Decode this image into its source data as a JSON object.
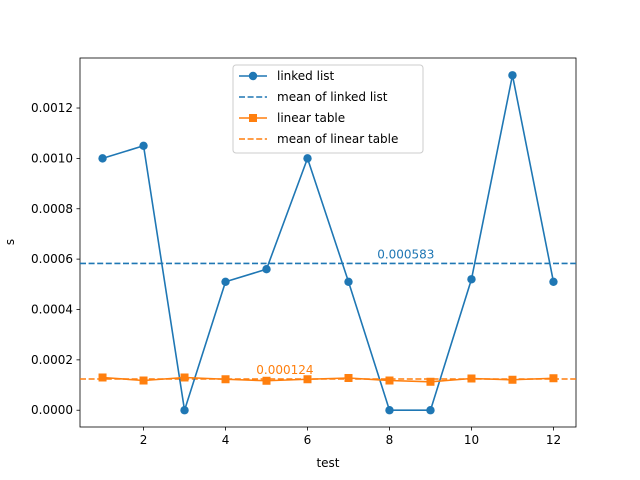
{
  "chart_data": {
    "type": "line",
    "xlabel": "test",
    "ylabel": "s",
    "xlim": [
      0.45,
      12.55
    ],
    "ylim": [
      -6.66e-05,
      0.0013986
    ],
    "x_ticks": [
      2,
      4,
      6,
      8,
      10,
      12
    ],
    "x_tick_labels": [
      "2",
      "4",
      "6",
      "8",
      "10",
      "12"
    ],
    "y_ticks": [
      0,
      0.0002,
      0.0004,
      0.0006,
      0.0008,
      0.001,
      0.0012
    ],
    "y_tick_labels": [
      "0.0000",
      "0.0002",
      "0.0004",
      "0.0006",
      "0.0008",
      "0.0010",
      "0.0012"
    ],
    "grid": false,
    "legend_position": "upper center",
    "x": [
      1,
      2,
      3,
      4,
      5,
      6,
      7,
      8,
      9,
      10,
      11,
      12
    ],
    "series": [
      {
        "name": "linked list",
        "color": "#1f77b4",
        "marker": "circle",
        "values": [
          0.001,
          0.00105,
          0.0,
          0.00051,
          0.00056,
          0.001,
          0.00051,
          0.0,
          0.0,
          0.00052,
          0.00133,
          0.00051
        ]
      },
      {
        "name": "linear table",
        "color": "#ff7f0e",
        "marker": "square",
        "values": [
          0.00013,
          0.000118,
          0.00013,
          0.000123,
          0.000117,
          0.000123,
          0.000128,
          0.000118,
          0.000113,
          0.000126,
          0.000121,
          0.000127
        ]
      }
    ],
    "mean_lines": [
      {
        "name": "mean of linked list",
        "color": "#1f77b4",
        "value": 0.000583,
        "label": "0.000583",
        "label_x": 7.7
      },
      {
        "name": "mean of linear table",
        "color": "#ff7f0e",
        "value": 0.000124,
        "label": "0.000124",
        "label_x": 4.75
      }
    ]
  }
}
